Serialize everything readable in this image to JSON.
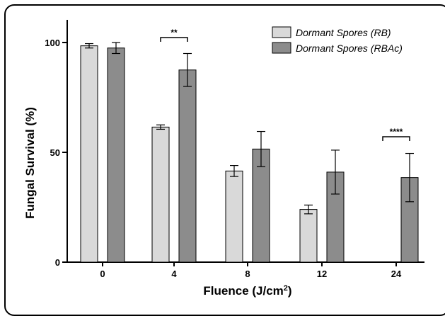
{
  "colors": {
    "rb": "#d9d9d9",
    "rbac": "#8c8c8c",
    "axis": "#000000"
  },
  "chart_data": {
    "type": "bar",
    "categories": [
      "0",
      "4",
      "8",
      "12",
      "24"
    ],
    "series": [
      {
        "name": "Dormant Spores (RB)",
        "values": [
          98.5,
          61.5,
          41.5,
          24,
          null
        ],
        "errors": [
          1,
          1,
          2.5,
          2,
          null
        ]
      },
      {
        "name": "Dormant Spores (RBAc)",
        "values": [
          97.5,
          87.5,
          51.5,
          41,
          38.5
        ],
        "errors": [
          2.5,
          7.5,
          8,
          10,
          11
        ]
      }
    ],
    "xlabel_main": "Fluence (J/cm",
    "xlabel_sup": "2",
    "xlabel_end": ")",
    "ylabel": "Fungal Survival (%)",
    "yticks": [
      "0",
      "50",
      "100"
    ],
    "ylim": [
      0,
      100
    ],
    "legend_position": "top-right",
    "annotations": [
      {
        "label": "**",
        "category": "4"
      },
      {
        "label": "****",
        "category": "24"
      }
    ]
  }
}
